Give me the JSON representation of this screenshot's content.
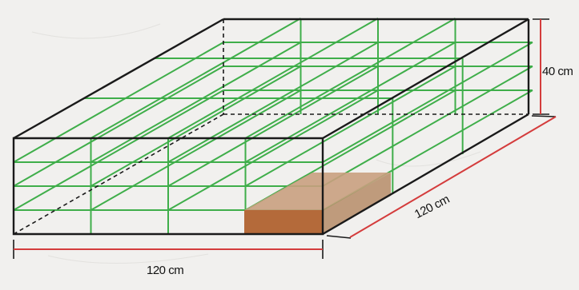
{
  "figure": {
    "type": "isometric wire-frame box diagram",
    "dimensions": {
      "width": "120 cm",
      "depth": "120 cm",
      "height": "40 cm"
    },
    "colors": {
      "frame": "#1a1a1a",
      "grid": "#3fae4a",
      "dimension_line": "#d43c3c",
      "block_front": "#b46a3a",
      "block_top": "#c9a07f",
      "background": "#f1f0ee"
    }
  }
}
